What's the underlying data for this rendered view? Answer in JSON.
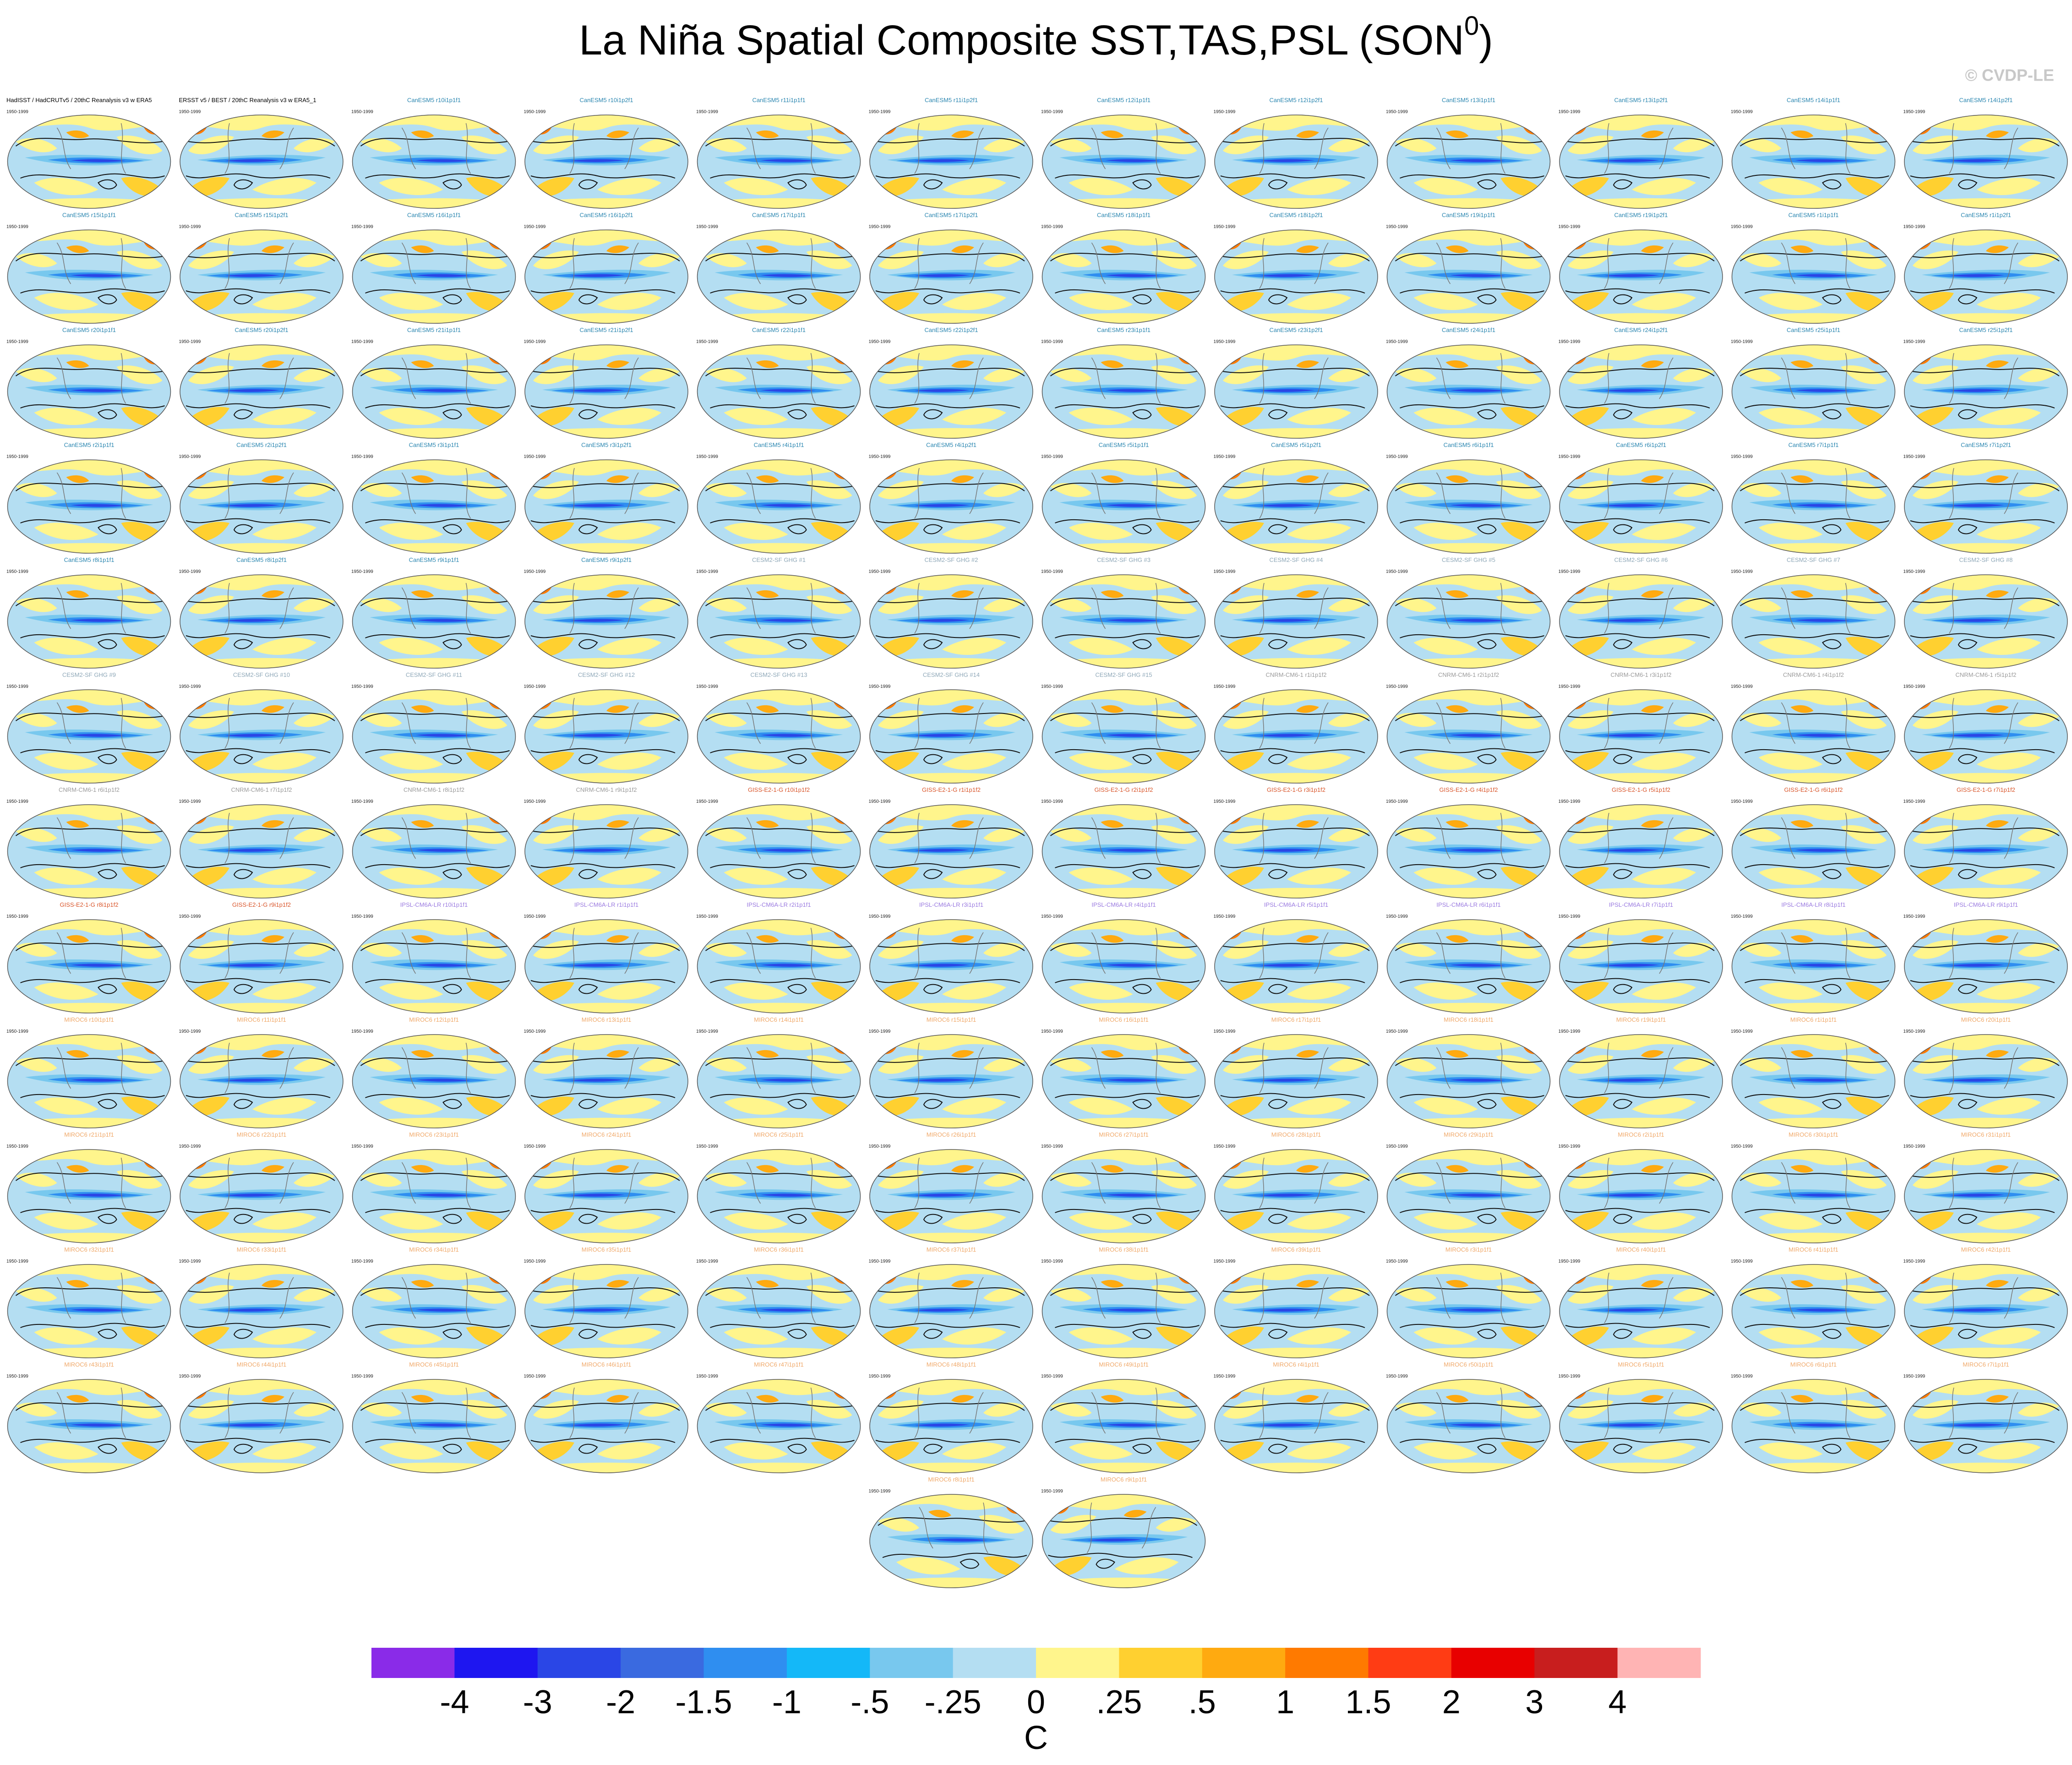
{
  "chart_data": {
    "type": "map-panels",
    "title": "La Niña Spatial Composite SST,TAS,PSL (SON",
    "title_superscript": "0",
    "title_suffix": ")",
    "watermark": "© CVDP-LE",
    "period": "1950-1999",
    "panels": [
      {
        "title": "HadISST / HadCRUTv5 / 20thC Reanalysis v3 w ERA5",
        "color": "#000000"
      },
      {
        "title": "ERSST v5 / BEST / 20thC Reanalysis v3 w ERA5_1",
        "color": "#000000"
      },
      {
        "title": "CanESM5 r10i1p1f1",
        "color": "#2a86b0"
      },
      {
        "title": "CanESM5 r10i1p2f1",
        "color": "#2a86b0"
      },
      {
        "title": "CanESM5 r11i1p1f1",
        "color": "#2a86b0"
      },
      {
        "title": "CanESM5 r11i1p2f1",
        "color": "#2a86b0"
      },
      {
        "title": "CanESM5 r12i1p1f1",
        "color": "#2a86b0"
      },
      {
        "title": "CanESM5 r12i1p2f1",
        "color": "#2a86b0"
      },
      {
        "title": "CanESM5 r13i1p1f1",
        "color": "#2a86b0"
      },
      {
        "title": "CanESM5 r13i1p2f1",
        "color": "#2a86b0"
      },
      {
        "title": "CanESM5 r14i1p1f1",
        "color": "#2a86b0"
      },
      {
        "title": "CanESM5 r14i1p2f1",
        "color": "#2a86b0"
      },
      {
        "title": "CanESM5 r15i1p1f1",
        "color": "#2a86b0"
      },
      {
        "title": "CanESM5 r15i1p2f1",
        "color": "#2a86b0"
      },
      {
        "title": "CanESM5 r16i1p1f1",
        "color": "#2a86b0"
      },
      {
        "title": "CanESM5 r16i1p2f1",
        "color": "#2a86b0"
      },
      {
        "title": "CanESM5 r17i1p1f1",
        "color": "#2a86b0"
      },
      {
        "title": "CanESM5 r17i1p2f1",
        "color": "#2a86b0"
      },
      {
        "title": "CanESM5 r18i1p1f1",
        "color": "#2a86b0"
      },
      {
        "title": "CanESM5 r18i1p2f1",
        "color": "#2a86b0"
      },
      {
        "title": "CanESM5 r19i1p1f1",
        "color": "#2a86b0"
      },
      {
        "title": "CanESM5 r19i1p2f1",
        "color": "#2a86b0"
      },
      {
        "title": "CanESM5 r1i1p1f1",
        "color": "#2a86b0"
      },
      {
        "title": "CanESM5 r1i1p2f1",
        "color": "#2a86b0"
      },
      {
        "title": "CanESM5 r20i1p1f1",
        "color": "#2a86b0"
      },
      {
        "title": "CanESM5 r20i1p2f1",
        "color": "#2a86b0"
      },
      {
        "title": "CanESM5 r21i1p1f1",
        "color": "#2a86b0"
      },
      {
        "title": "CanESM5 r21i1p2f1",
        "color": "#2a86b0"
      },
      {
        "title": "CanESM5 r22i1p1f1",
        "color": "#2a86b0"
      },
      {
        "title": "CanESM5 r22i1p2f1",
        "color": "#2a86b0"
      },
      {
        "title": "CanESM5 r23i1p1f1",
        "color": "#2a86b0"
      },
      {
        "title": "CanESM5 r23i1p2f1",
        "color": "#2a86b0"
      },
      {
        "title": "CanESM5 r24i1p1f1",
        "color": "#2a86b0"
      },
      {
        "title": "CanESM5 r24i1p2f1",
        "color": "#2a86b0"
      },
      {
        "title": "CanESM5 r25i1p1f1",
        "color": "#2a86b0"
      },
      {
        "title": "CanESM5 r25i1p2f1",
        "color": "#2a86b0"
      },
      {
        "title": "CanESM5 r2i1p1f1",
        "color": "#2a86b0"
      },
      {
        "title": "CanESM5 r2i1p2f1",
        "color": "#2a86b0"
      },
      {
        "title": "CanESM5 r3i1p1f1",
        "color": "#2a86b0"
      },
      {
        "title": "CanESM5 r3i1p2f1",
        "color": "#2a86b0"
      },
      {
        "title": "CanESM5 r4i1p1f1",
        "color": "#2a86b0"
      },
      {
        "title": "CanESM5 r4i1p2f1",
        "color": "#2a86b0"
      },
      {
        "title": "CanESM5 r5i1p1f1",
        "color": "#2a86b0"
      },
      {
        "title": "CanESM5 r5i1p2f1",
        "color": "#2a86b0"
      },
      {
        "title": "CanESM5 r6i1p1f1",
        "color": "#2a86b0"
      },
      {
        "title": "CanESM5 r6i1p2f1",
        "color": "#2a86b0"
      },
      {
        "title": "CanESM5 r7i1p1f1",
        "color": "#2a86b0"
      },
      {
        "title": "CanESM5 r7i1p2f1",
        "color": "#2a86b0"
      },
      {
        "title": "CanESM5 r8i1p1f1",
        "color": "#2a86b0"
      },
      {
        "title": "CanESM5 r8i1p2f1",
        "color": "#2a86b0"
      },
      {
        "title": "CanESM5 r9i1p1f1",
        "color": "#2a86b0"
      },
      {
        "title": "CanESM5 r9i1p2f1",
        "color": "#2a86b0"
      },
      {
        "title": "CESM2-SF GHG #1",
        "color": "#8fa8b8"
      },
      {
        "title": "CESM2-SF GHG #2",
        "color": "#8fa8b8"
      },
      {
        "title": "CESM2-SF GHG #3",
        "color": "#8fa8b8"
      },
      {
        "title": "CESM2-SF GHG #4",
        "color": "#8fa8b8"
      },
      {
        "title": "CESM2-SF GHG #5",
        "color": "#8fa8b8"
      },
      {
        "title": "CESM2-SF GHG #6",
        "color": "#8fa8b8"
      },
      {
        "title": "CESM2-SF GHG #7",
        "color": "#8fa8b8"
      },
      {
        "title": "CESM2-SF GHG #8",
        "color": "#8fa8b8"
      },
      {
        "title": "CESM2-SF GHG #9",
        "color": "#8fa8b8"
      },
      {
        "title": "CESM2-SF GHG #10",
        "color": "#8fa8b8"
      },
      {
        "title": "CESM2-SF GHG #11",
        "color": "#8fa8b8"
      },
      {
        "title": "CESM2-SF GHG #12",
        "color": "#8fa8b8"
      },
      {
        "title": "CESM2-SF GHG #13",
        "color": "#8fa8b8"
      },
      {
        "title": "CESM2-SF GHG #14",
        "color": "#8fa8b8"
      },
      {
        "title": "CESM2-SF GHG #15",
        "color": "#8fa8b8"
      },
      {
        "title": "CNRM-CM6-1 r1i1p1f2",
        "color": "#9a9a9a"
      },
      {
        "title": "CNRM-CM6-1 r2i1p1f2",
        "color": "#9a9a9a"
      },
      {
        "title": "CNRM-CM6-1 r3i1p1f2",
        "color": "#9a9a9a"
      },
      {
        "title": "CNRM-CM6-1 r4i1p1f2",
        "color": "#9a9a9a"
      },
      {
        "title": "CNRM-CM6-1 r5i1p1f2",
        "color": "#9a9a9a"
      },
      {
        "title": "CNRM-CM6-1 r6i1p1f2",
        "color": "#9a9a9a"
      },
      {
        "title": "CNRM-CM6-1 r7i1p1f2",
        "color": "#9a9a9a"
      },
      {
        "title": "CNRM-CM6-1 r8i1p1f2",
        "color": "#9a9a9a"
      },
      {
        "title": "CNRM-CM6-1 r9i1p1f2",
        "color": "#9a9a9a"
      },
      {
        "title": "GISS-E2-1-G r10i1p1f2",
        "color": "#d9552a"
      },
      {
        "title": "GISS-E2-1-G r1i1p1f2",
        "color": "#d9552a"
      },
      {
        "title": "GISS-E2-1-G r2i1p1f2",
        "color": "#d9552a"
      },
      {
        "title": "GISS-E2-1-G r3i1p1f2",
        "color": "#d9552a"
      },
      {
        "title": "GISS-E2-1-G r4i1p1f2",
        "color": "#d9552a"
      },
      {
        "title": "GISS-E2-1-G r5i1p1f2",
        "color": "#d9552a"
      },
      {
        "title": "GISS-E2-1-G r6i1p1f2",
        "color": "#d9552a"
      },
      {
        "title": "GISS-E2-1-G r7i1p1f2",
        "color": "#d9552a"
      },
      {
        "title": "GISS-E2-1-G r8i1p1f2",
        "color": "#d9552a"
      },
      {
        "title": "GISS-E2-1-G r9i1p1f2",
        "color": "#d9552a"
      },
      {
        "title": "IPSL-CM6A-LR r10i1p1f1",
        "color": "#9b7be0"
      },
      {
        "title": "IPSL-CM6A-LR r1i1p1f1",
        "color": "#9b7be0"
      },
      {
        "title": "IPSL-CM6A-LR r2i1p1f1",
        "color": "#9b7be0"
      },
      {
        "title": "IPSL-CM6A-LR r3i1p1f1",
        "color": "#9b7be0"
      },
      {
        "title": "IPSL-CM6A-LR r4i1p1f1",
        "color": "#9b7be0"
      },
      {
        "title": "IPSL-CM6A-LR r5i1p1f1",
        "color": "#9b7be0"
      },
      {
        "title": "IPSL-CM6A-LR r6i1p1f1",
        "color": "#9b7be0"
      },
      {
        "title": "IPSL-CM6A-LR r7i1p1f1",
        "color": "#9b7be0"
      },
      {
        "title": "IPSL-CM6A-LR r8i1p1f1",
        "color": "#9b7be0"
      },
      {
        "title": "IPSL-CM6A-LR r9i1p1f1",
        "color": "#9b7be0"
      },
      {
        "title": "MIROC6 r10i1p1f1",
        "color": "#f0a868"
      },
      {
        "title": "MIROC6 r11i1p1f1",
        "color": "#f0a868"
      },
      {
        "title": "MIROC6 r12i1p1f1",
        "color": "#f0a868"
      },
      {
        "title": "MIROC6 r13i1p1f1",
        "color": "#f0a868"
      },
      {
        "title": "MIROC6 r14i1p1f1",
        "color": "#f0a868"
      },
      {
        "title": "MIROC6 r15i1p1f1",
        "color": "#f0a868"
      },
      {
        "title": "MIROC6 r16i1p1f1",
        "color": "#f0a868"
      },
      {
        "title": "MIROC6 r17i1p1f1",
        "color": "#f0a868"
      },
      {
        "title": "MIROC6 r18i1p1f1",
        "color": "#f0a868"
      },
      {
        "title": "MIROC6 r19i1p1f1",
        "color": "#f0a868"
      },
      {
        "title": "MIROC6 r1i1p1f1",
        "color": "#f0a868"
      },
      {
        "title": "MIROC6 r20i1p1f1",
        "color": "#f0a868"
      },
      {
        "title": "MIROC6 r21i1p1f1",
        "color": "#f0a868"
      },
      {
        "title": "MIROC6 r22i1p1f1",
        "color": "#f0a868"
      },
      {
        "title": "MIROC6 r23i1p1f1",
        "color": "#f0a868"
      },
      {
        "title": "MIROC6 r24i1p1f1",
        "color": "#f0a868"
      },
      {
        "title": "MIROC6 r25i1p1f1",
        "color": "#f0a868"
      },
      {
        "title": "MIROC6 r26i1p1f1",
        "color": "#f0a868"
      },
      {
        "title": "MIROC6 r27i1p1f1",
        "color": "#f0a868"
      },
      {
        "title": "MIROC6 r28i1p1f1",
        "color": "#f0a868"
      },
      {
        "title": "MIROC6 r29i1p1f1",
        "color": "#f0a868"
      },
      {
        "title": "MIROC6 r2i1p1f1",
        "color": "#f0a868"
      },
      {
        "title": "MIROC6 r30i1p1f1",
        "color": "#f0a868"
      },
      {
        "title": "MIROC6 r31i1p1f1",
        "color": "#f0a868"
      },
      {
        "title": "MIROC6 r32i1p1f1",
        "color": "#f0a868"
      },
      {
        "title": "MIROC6 r33i1p1f1",
        "color": "#f0a868"
      },
      {
        "title": "MIROC6 r34i1p1f1",
        "color": "#f0a868"
      },
      {
        "title": "MIROC6 r35i1p1f1",
        "color": "#f0a868"
      },
      {
        "title": "MIROC6 r36i1p1f1",
        "color": "#f0a868"
      },
      {
        "title": "MIROC6 r37i1p1f1",
        "color": "#f0a868"
      },
      {
        "title": "MIROC6 r38i1p1f1",
        "color": "#f0a868"
      },
      {
        "title": "MIROC6 r39i1p1f1",
        "color": "#f0a868"
      },
      {
        "title": "MIROC6 r3i1p1f1",
        "color": "#f0a868"
      },
      {
        "title": "MIROC6 r40i1p1f1",
        "color": "#f0a868"
      },
      {
        "title": "MIROC6 r41i1p1f1",
        "color": "#f0a868"
      },
      {
        "title": "MIROC6 r42i1p1f1",
        "color": "#f0a868"
      },
      {
        "title": "MIROC6 r43i1p1f1",
        "color": "#f0a868"
      },
      {
        "title": "MIROC6 r44i1p1f1",
        "color": "#f0a868"
      },
      {
        "title": "MIROC6 r45i1p1f1",
        "color": "#f0a868"
      },
      {
        "title": "MIROC6 r46i1p1f1",
        "color": "#f0a868"
      },
      {
        "title": "MIROC6 r47i1p1f1",
        "color": "#f0a868"
      },
      {
        "title": "MIROC6 r48i1p1f1",
        "color": "#f0a868"
      },
      {
        "title": "MIROC6 r49i1p1f1",
        "color": "#f0a868"
      },
      {
        "title": "MIROC6 r4i1p1f1",
        "color": "#f0a868"
      },
      {
        "title": "MIROC6 r50i1p1f1",
        "color": "#f0a868"
      },
      {
        "title": "MIROC6 r5i1p1f1",
        "color": "#f0a868"
      },
      {
        "title": "MIROC6 r6i1p1f1",
        "color": "#f0a868"
      },
      {
        "title": "MIROC6 r7i1p1f1",
        "color": "#f0a868"
      },
      {
        "title": "MIROC6 r8i1p1f1",
        "color": "#f0a868"
      },
      {
        "title": "MIROC6 r9i1p1f1",
        "color": "#f0a868"
      }
    ],
    "colorbar": {
      "colors": [
        "#8a2be8",
        "#1e16f0",
        "#2a46e6",
        "#3a6ae0",
        "#2f8ef0",
        "#14b8f8",
        "#78c8ee",
        "#b4def2",
        "#fff58c",
        "#ffd030",
        "#ffaa10",
        "#ff7a00",
        "#ff3c14",
        "#e80000",
        "#c81e1e",
        "#ffb4b4"
      ],
      "ticks": [
        -4,
        -3,
        -2,
        {
          "value": -1.5,
          "label": "-1.5"
        },
        -1,
        {
          "value": -0.5,
          "label": "-.5"
        },
        {
          "value": -0.25,
          "label": "-.25"
        },
        0,
        {
          "value": 0.25,
          "label": ".25"
        },
        {
          "value": 0.5,
          "label": ".5"
        },
        1,
        {
          "value": 1.5,
          "label": "1.5"
        },
        2,
        3,
        4
      ],
      "units": "C"
    }
  }
}
